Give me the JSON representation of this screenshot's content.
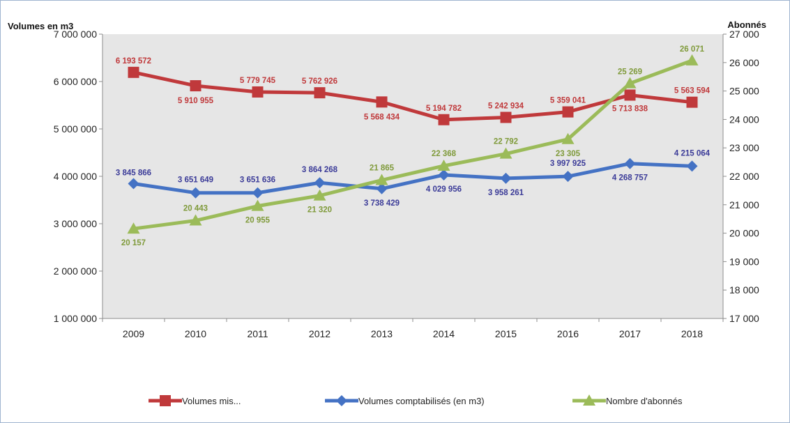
{
  "chart_data": {
    "type": "line",
    "y_left_label": "Volumes en m3",
    "y_right_label": "Abonnés",
    "categories": [
      "2009",
      "2010",
      "2011",
      "2012",
      "2013",
      "2014",
      "2015",
      "2016",
      "2017",
      "2018"
    ],
    "y_left_range": [
      1000000,
      7000000
    ],
    "y_left_ticks": [
      "1 000 000",
      "2 000 000",
      "3 000 000",
      "4 000 000",
      "5 000 000",
      "6 000 000",
      "7 000 000"
    ],
    "y_right_range": [
      17000,
      27000
    ],
    "y_right_ticks": [
      "17 000",
      "18 000",
      "19 000",
      "20 000",
      "21 000",
      "22 000",
      "23 000",
      "24 000",
      "25 000",
      "26 000",
      "27 000"
    ],
    "grid": false,
    "legend_position": "bottom",
    "series": [
      {
        "name": "Volumes mis...",
        "axis": "left",
        "marker": "square",
        "color": "#c0393b",
        "values": [
          6193572,
          5910955,
          5779745,
          5762926,
          5568434,
          5194782,
          5242934,
          5359041,
          5713838,
          5563594
        ],
        "labels": [
          "6 193 572",
          "5 910 955",
          "5 779 745",
          "5 762 926",
          "5 568 434",
          "5 194 782",
          "5 242 934",
          "5 359 041",
          "5 713 838",
          "5 563 594"
        ]
      },
      {
        "name": "Volumes comptabilisés (en m3)",
        "axis": "left",
        "marker": "diamond",
        "color": "#4472c4",
        "label_color": "#3b3b98",
        "values": [
          3845866,
          3651649,
          3651636,
          3864268,
          3738429,
          4029956,
          3958261,
          3997925,
          4268757,
          4215064
        ],
        "labels": [
          "3 845 866",
          "3 651 649",
          "3 651 636",
          "3 864 268",
          "3 738 429",
          "4 029 956",
          "3 958 261",
          "3 997 925",
          "4 268 757",
          "4 215 064"
        ]
      },
      {
        "name": "Nombre d'abonnés",
        "axis": "right",
        "marker": "triangle",
        "color": "#9bbb59",
        "label_color": "#7f9a3a",
        "values": [
          20157,
          20443,
          20955,
          21320,
          21865,
          22368,
          22792,
          23305,
          25269,
          26071
        ],
        "labels": [
          "20 157",
          "20 443",
          "20 955",
          "21 320",
          "21 865",
          "22 368",
          "22 792",
          "23 305",
          "25 269",
          "26 071"
        ]
      }
    ]
  }
}
